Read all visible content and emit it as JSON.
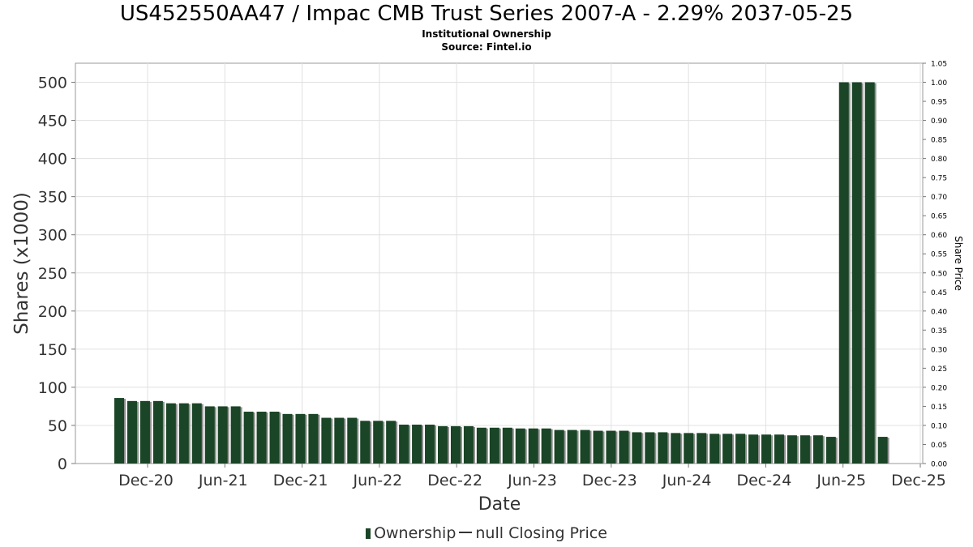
{
  "title": "US452550AA47 / Impac CMB Trust Series 2007-A - 2.29% 2037-05-25",
  "subtitle1": "Institutional Ownership",
  "subtitle2": "Source: Fintel.io",
  "legend": {
    "ownership": "Ownership",
    "price": "null Closing Price"
  },
  "chart_data": {
    "type": "bar",
    "xlabel": "Date",
    "ylabel": "Shares (x1000)",
    "y2label": "Share Price",
    "ylim": [
      0,
      525
    ],
    "y2lim": [
      0,
      1.05
    ],
    "grid": true,
    "legend_position": "bottom",
    "x_ticks": [
      "Dec-20",
      "Jun-21",
      "Dec-21",
      "Jun-22",
      "Dec-22",
      "Jun-23",
      "Dec-23",
      "Jun-24",
      "Dec-24",
      "Jun-25",
      "Dec-25"
    ],
    "y_ticks": [
      0,
      50,
      100,
      150,
      200,
      250,
      300,
      350,
      400,
      450,
      500
    ],
    "y2_ticks": [
      "0.00",
      "0.05",
      "0.10",
      "0.15",
      "0.20",
      "0.25",
      "0.30",
      "0.35",
      "0.40",
      "0.45",
      "0.50",
      "0.55",
      "0.60",
      "0.65",
      "0.70",
      "0.75",
      "0.80",
      "0.85",
      "0.90",
      "0.95",
      "1.00",
      "1.05"
    ],
    "colors": {
      "bar": "#1a4526",
      "bar_shadow": "#8f8f8f",
      "grid": "#e0e0e0"
    },
    "series": [
      {
        "values": [
          86,
          82,
          82,
          82,
          79,
          79,
          79,
          75,
          75,
          75,
          68,
          68,
          68,
          65,
          65,
          65,
          60,
          60,
          60,
          56,
          56,
          56,
          51,
          51,
          51,
          49,
          49,
          49,
          47,
          47,
          47,
          46,
          46,
          46,
          44,
          44,
          44,
          43,
          43,
          43,
          41,
          41,
          41,
          40,
          40,
          40,
          39,
          39,
          39,
          38,
          38,
          38,
          37,
          37,
          37,
          35,
          500,
          500,
          500,
          35
        ]
      }
    ]
  }
}
